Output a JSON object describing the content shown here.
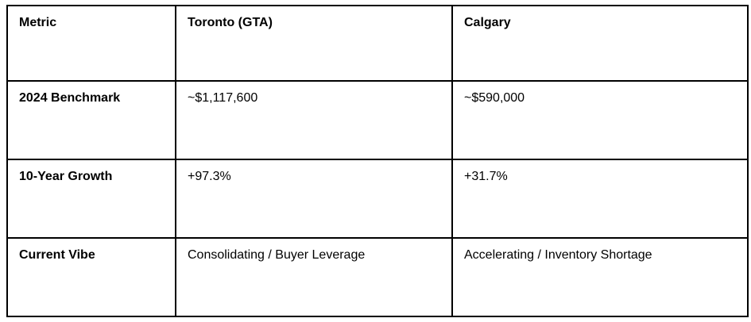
{
  "table": {
    "columns": [
      "Metric",
      "Toronto (GTA)",
      "Calgary"
    ],
    "rows": [
      {
        "metric": "2024 Benchmark",
        "toronto": "~$1,117,600",
        "calgary": "~$590,000"
      },
      {
        "metric": "10-Year Growth",
        "toronto": "+97.3%",
        "calgary": "+31.7%"
      },
      {
        "metric": "Current Vibe",
        "toronto": "Consolidating / Buyer Leverage",
        "calgary": "Accelerating / Inventory Shortage"
      }
    ],
    "colors": {
      "border": "#000000",
      "text": "#000000",
      "background": "#ffffff"
    }
  }
}
